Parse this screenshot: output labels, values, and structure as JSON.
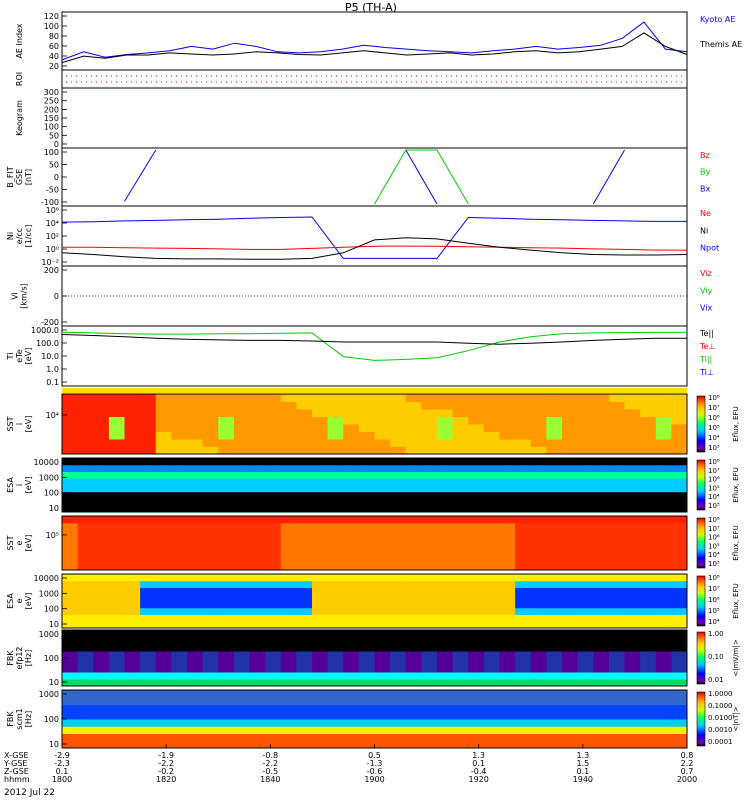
{
  "title": "P5 (TH-A)",
  "date_label": "2012 Jul 22",
  "colors": {
    "blue": "#0000ff",
    "red": "#ff0000",
    "green": "#00cc00",
    "black": "#000000"
  },
  "panels": [
    {
      "id": "ae",
      "ylabel": [
        "AE Index"
      ],
      "ticks": [
        "120",
        "100",
        "80",
        "60",
        "40",
        "20"
      ],
      "legend": [
        {
          "text": "Kyoto AE",
          "color": "#0000ff"
        },
        {
          "text": "Themis AE",
          "color": "#000000"
        }
      ]
    },
    {
      "id": "roi",
      "ylabel": [
        "ROI"
      ],
      "ticks": [],
      "legend": []
    },
    {
      "id": "keogram",
      "ylabel": [
        "Keogram"
      ],
      "ticks": [
        "300",
        "250",
        "200",
        "150",
        "100",
        "50",
        "0"
      ],
      "legend": []
    },
    {
      "id": "bfit",
      "ylabel": [
        "B_FIT",
        "GSE",
        "[nT]"
      ],
      "ticks": [
        "100",
        "50",
        "0",
        "-50",
        "-100"
      ],
      "legend": [
        {
          "text": "Bz",
          "color": "#ff0000"
        },
        {
          "text": "By",
          "color": "#00cc00"
        },
        {
          "text": "Bx",
          "color": "#0000ff"
        }
      ]
    },
    {
      "id": "ni",
      "ylabel": [
        "Ni",
        "e/cc",
        "[1/cc]"
      ],
      "ticks": [
        "10⁶",
        "10⁴",
        "10²",
        "10⁰",
        "10⁻²"
      ],
      "legend": [
        {
          "text": "Ne",
          "color": "#ff0000"
        },
        {
          "text": "Ni",
          "color": "#000000"
        },
        {
          "text": "Npot",
          "color": "#0000ff"
        }
      ]
    },
    {
      "id": "vi",
      "ylabel": [
        "Vi",
        "[km/s]"
      ],
      "ticks": [
        "200",
        "0",
        "-200"
      ],
      "legend": [
        {
          "text": "Viz",
          "color": "#ff0000"
        },
        {
          "text": "Viy",
          "color": "#00cc00"
        },
        {
          "text": "Vix",
          "color": "#0000ff"
        }
      ]
    },
    {
      "id": "ti",
      "ylabel": [
        "Ti",
        "eTe",
        "[eV]"
      ],
      "ticks": [
        "1000.0",
        "100.0",
        "10.0",
        "1.0",
        "0.1"
      ],
      "legend": [
        {
          "text": "Te||",
          "color": "#000000"
        },
        {
          "text": "Te⊥",
          "color": "#ff0000"
        },
        {
          "text": "Ti||",
          "color": "#00cc00"
        },
        {
          "text": "Ti⊥",
          "color": "#0000ff"
        }
      ]
    },
    {
      "id": "sst_i",
      "ylabel": [
        "SST",
        "i",
        "[eV]"
      ],
      "ticks": [
        "10⁴"
      ],
      "colorbar": [
        "10⁸",
        "10⁷",
        "10⁶",
        "10⁵",
        "10⁴",
        "10³"
      ],
      "cb_label": "Eflux, EFU"
    },
    {
      "id": "esa_i",
      "ylabel": [
        "ESA",
        "i",
        "[eV]"
      ],
      "ticks": [
        "10000",
        "1000",
        "100",
        "10"
      ],
      "colorbar": [
        "10⁸",
        "10⁷",
        "10⁶",
        "10⁵",
        "10⁴",
        "10³"
      ],
      "cb_label": "Eflux, EFU"
    },
    {
      "id": "sst_e",
      "ylabel": [
        "SST",
        "e",
        "[eV]"
      ],
      "ticks": [
        "10⁵"
      ],
      "colorbar": [
        "10⁸",
        "10⁷",
        "10⁶",
        "10⁵",
        "10⁴",
        "10³"
      ],
      "cb_label": "Eflux, EFU"
    },
    {
      "id": "esa_e",
      "ylabel": [
        "ESA",
        "e",
        "[eV]"
      ],
      "ticks": [
        "10000",
        "1000",
        "100",
        "10"
      ],
      "colorbar": [
        "10⁸",
        "10⁷",
        "10⁶",
        "10⁵",
        "10⁴"
      ],
      "cb_label": "Eflux, EFU"
    },
    {
      "id": "fbk_e",
      "ylabel": [
        "FBK",
        "efp12",
        "[Hz]"
      ],
      "ticks": [
        "1000",
        "100",
        "10"
      ],
      "colorbar": [
        "1.00",
        "0.10",
        "0.01"
      ],
      "cb_label": "<|mV/m|>"
    },
    {
      "id": "fbk_b",
      "ylabel": [
        "FBK",
        "scm1",
        "[Hz]"
      ],
      "ticks": [
        "1000",
        "100",
        "10"
      ],
      "colorbar": [
        "1.0000",
        "0.1000",
        "0.0100",
        "0.0010",
        "0.0001"
      ],
      "cb_label": "<|nT|>"
    }
  ],
  "xaxis": {
    "row_labels": [
      "X-GSE",
      "Y-GSE",
      "Z-GSE",
      "hhmm"
    ],
    "columns": [
      {
        "vals": [
          "-2.9",
          "-2.3",
          "0.1",
          "1800"
        ]
      },
      {
        "vals": [
          "-1.9",
          "-2.2",
          "-0.2",
          "1820"
        ]
      },
      {
        "vals": [
          "-0.8",
          "-2.2",
          "-0.5",
          "1840"
        ]
      },
      {
        "vals": [
          "0.5",
          "-1.3",
          "-0.6",
          "1900"
        ]
      },
      {
        "vals": [
          "1.3",
          "0.1",
          "-0.4",
          "1920"
        ]
      },
      {
        "vals": [
          "1.3",
          "1.5",
          "0.1",
          "1940"
        ]
      },
      {
        "vals": [
          "0.8",
          "2.2",
          "0.7",
          "2000"
        ]
      }
    ]
  },
  "chart_data": {
    "type": "line",
    "time_range": [
      "1800",
      "2000"
    ],
    "ae_index": {
      "ylim": [
        20,
        120
      ],
      "series": [
        {
          "name": "Kyoto AE",
          "values": [
            35,
            50,
            40,
            45,
            48,
            52,
            60,
            55,
            66,
            60,
            50,
            48,
            50,
            55,
            62,
            58,
            55,
            52,
            50,
            48,
            52,
            55,
            60,
            55,
            58,
            62,
            75,
            105,
            55,
            50
          ]
        },
        {
          "name": "Themis AE",
          "values": [
            30,
            42,
            38,
            44,
            44,
            48,
            46,
            44,
            46,
            50,
            48,
            45,
            44,
            48,
            52,
            48,
            44,
            46,
            48,
            44,
            46,
            50,
            52,
            48,
            50,
            55,
            60,
            85,
            60,
            45
          ]
        }
      ]
    },
    "b_fit": {
      "ylim": [
        -100,
        100
      ],
      "series": [
        {
          "name": "Bx",
          "values": [
            null,
            null,
            -90,
            100,
            null,
            null,
            null,
            null,
            null,
            null,
            null,
            100,
            -100,
            null,
            null,
            null,
            null,
            -100,
            100,
            null,
            null
          ]
        },
        {
          "name": "By",
          "values": [
            null,
            null,
            null,
            null,
            null,
            null,
            null,
            null,
            null,
            null,
            -100,
            100,
            100,
            -100,
            null,
            null,
            null,
            null,
            null,
            null,
            null
          ]
        }
      ]
    },
    "density": {
      "ylog": true,
      "series": [
        {
          "name": "Npot",
          "values": [
            30000,
            35000,
            50000,
            60000,
            80000,
            100000,
            150000,
            200000,
            250000,
            0.01,
            0.01,
            0.01,
            0.01,
            200000,
            150000,
            100000,
            80000,
            60000,
            50000,
            40000,
            40000
          ]
        },
        {
          "name": "Ne",
          "values": [
            1,
            1,
            0.8,
            0.7,
            0.6,
            0.5,
            0.4,
            0.4,
            0.6,
            1,
            1.5,
            1.6,
            1.5,
            1.2,
            1,
            0.8,
            0.7,
            0.5,
            0.4,
            0.3,
            0.3
          ]
        },
        {
          "name": "Ni",
          "values": [
            0.1,
            0.05,
            0.02,
            0.01,
            0.008,
            0.008,
            0.007,
            0.007,
            0.01,
            0.1,
            20,
            50,
            30,
            5,
            1,
            0.3,
            0.1,
            0.05,
            0.04,
            0.04,
            0.05
          ]
        }
      ]
    },
    "temperature": {
      "ylog": true,
      "series": [
        {
          "name": "Ti||",
          "values": [
            900,
            800,
            700,
            650,
            650,
            700,
            700,
            750,
            800,
            10,
            5,
            6,
            8,
            30,
            150,
            400,
            700,
            800,
            850,
            900,
            900
          ]
        },
        {
          "name": "Te||",
          "values": [
            600,
            500,
            400,
            300,
            250,
            220,
            200,
            200,
            180,
            150,
            150,
            150,
            150,
            120,
            100,
            120,
            150,
            200,
            250,
            300,
            300
          ]
        }
      ]
    }
  }
}
